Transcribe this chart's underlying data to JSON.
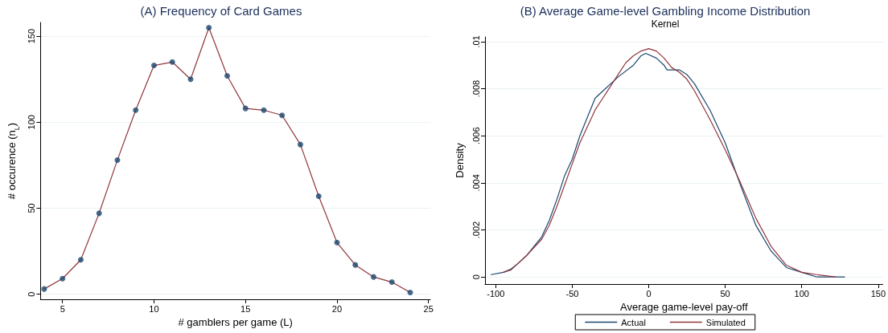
{
  "chart_data": [
    {
      "type": "line",
      "title": "(A) Frequency of Card Games",
      "xlabel": "# gamblers per game (L)",
      "ylabel": "# occurence (n$_{L}$)",
      "x": [
        4,
        5,
        6,
        7,
        8,
        9,
        10,
        11,
        12,
        13,
        14,
        15,
        16,
        17,
        18,
        19,
        20,
        21,
        22,
        23,
        24
      ],
      "xlim": [
        3.8,
        25.1
      ],
      "xticks": [
        5,
        10,
        15,
        20,
        25
      ],
      "ylim": [
        -3,
        158
      ],
      "yticks": [
        0,
        50,
        100,
        150
      ],
      "grid": "y",
      "legend": false,
      "series": [
        {
          "color": "#90353b",
          "marker": "none",
          "values": [
            3,
            9,
            20,
            47,
            78,
            107,
            133,
            135,
            125,
            155,
            127,
            108,
            107,
            104,
            87,
            57,
            30,
            17,
            10,
            7,
            1
          ]
        },
        {
          "type": "scatter",
          "color": "#1a476f",
          "marker": "circle",
          "values": [
            3,
            9,
            20,
            47,
            78,
            107,
            133,
            135,
            125,
            155,
            127,
            108,
            107,
            104,
            87,
            57,
            30,
            17,
            10,
            7,
            1
          ]
        }
      ]
    },
    {
      "type": "line",
      "title": "(B) Average Game-level Gambling Income Distribution",
      "subtitle": "Kernel",
      "xlabel": "Average game-level pay-off",
      "ylabel": "Density",
      "xlim": [
        -107,
        153
      ],
      "xticks": [
        -100,
        -50,
        0,
        50,
        100,
        150
      ],
      "ylim": [
        -0.0003,
        0.0102
      ],
      "yticks": [
        {
          "value": 0,
          "label": "0"
        },
        {
          "value": 0.002,
          "label": ".002"
        },
        {
          "value": 0.004,
          "label": ".004"
        },
        {
          "value": 0.006,
          "label": ".006"
        },
        {
          "value": 0.008,
          "label": ".008"
        },
        {
          "value": 0.01,
          "label": ".01"
        }
      ],
      "grid": "y",
      "legend": "bottom",
      "marker": "none",
      "series": [
        {
          "name": "Actual",
          "color": "#1a476f",
          "x": [
            -103,
            -95,
            -90,
            -85,
            -80,
            -75,
            -70,
            -65,
            -60,
            -55,
            -50,
            -45,
            -40,
            -35,
            -30,
            -25,
            -20,
            -10,
            -5,
            -2,
            5,
            10,
            12,
            20,
            25,
            30,
            40,
            50,
            60,
            70,
            80,
            90,
            100,
            110,
            128
          ],
          "values": [
            0.0001,
            0.0002,
            0.00034,
            0.0006,
            0.0009,
            0.0013,
            0.0017,
            0.0024,
            0.0033,
            0.0043,
            0.005,
            0.006,
            0.0068,
            0.0076,
            0.0079,
            0.0082,
            0.0085,
            0.009,
            0.0094,
            0.0095,
            0.0093,
            0.009,
            0.0088,
            0.0088,
            0.0086,
            0.0082,
            0.0071,
            0.0057,
            0.0039,
            0.0022,
            0.0011,
            0.0004,
            0.0002,
            0,
            0
          ]
        },
        {
          "name": "Simulated",
          "color": "#90353b",
          "x": [
            -95,
            -90,
            -80,
            -70,
            -65,
            -60,
            -55,
            -50,
            -45,
            -40,
            -35,
            -30,
            -25,
            -20,
            -15,
            -10,
            -5,
            0,
            5,
            10,
            15,
            20,
            25,
            30,
            40,
            50,
            60,
            70,
            80,
            90,
            100,
            110,
            122
          ],
          "values": [
            0.0002,
            0.0003,
            0.0009,
            0.0016,
            0.0022,
            0.003,
            0.0039,
            0.0048,
            0.0057,
            0.0064,
            0.0071,
            0.0076,
            0.0081,
            0.0086,
            0.0091,
            0.0094,
            0.0096,
            0.0097,
            0.0096,
            0.0093,
            0.0089,
            0.0087,
            0.0084,
            0.0079,
            0.0067,
            0.0054,
            0.004,
            0.0025,
            0.0013,
            0.0005,
            0.0002,
            0.0001,
            0
          ]
        }
      ]
    }
  ]
}
